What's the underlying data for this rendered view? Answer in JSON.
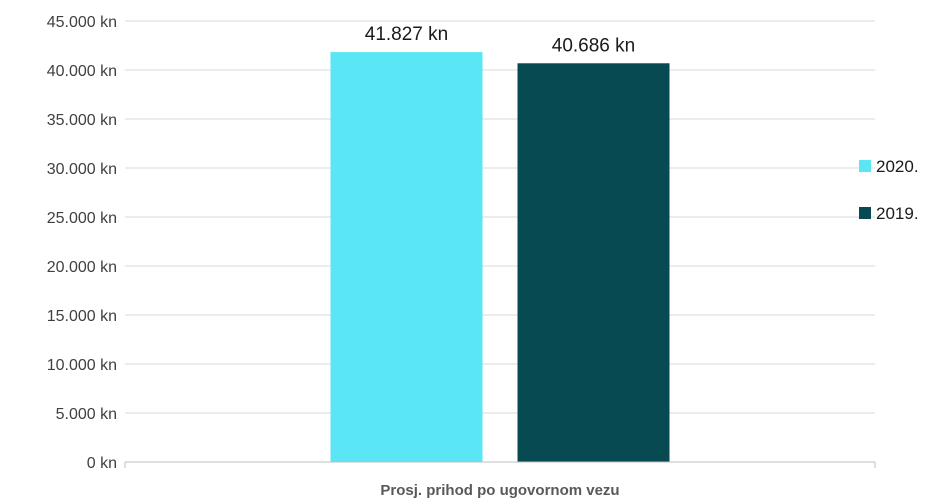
{
  "chart_data": {
    "type": "bar",
    "categories": [
      "Prosj. prihod po ugovornom vezu"
    ],
    "series": [
      {
        "name": "2020.",
        "values": [
          41827
        ],
        "value_labels": [
          "41.827 kn"
        ],
        "color": "#5ae6f5"
      },
      {
        "name": "2019.",
        "values": [
          40686
        ],
        "value_labels": [
          "40.686 kn"
        ],
        "color": "#074a52"
      }
    ],
    "title": "",
    "xlabel": "",
    "ylabel": "",
    "ylim": [
      0,
      45000
    ],
    "y_ticks": [
      0,
      5000,
      10000,
      15000,
      20000,
      25000,
      30000,
      35000,
      40000,
      45000
    ],
    "y_tick_labels": [
      "0 kn",
      "5.000 kn",
      "10.000 kn",
      "15.000 kn",
      "20.000 kn",
      "25.000 kn",
      "30.000 kn",
      "35.000 kn",
      "40.000 kn",
      "45.000 kn"
    ],
    "grid": true,
    "legend": "right",
    "colors": {
      "gridline": "#d9d9d9",
      "axis": "#bfbfbf"
    }
  }
}
